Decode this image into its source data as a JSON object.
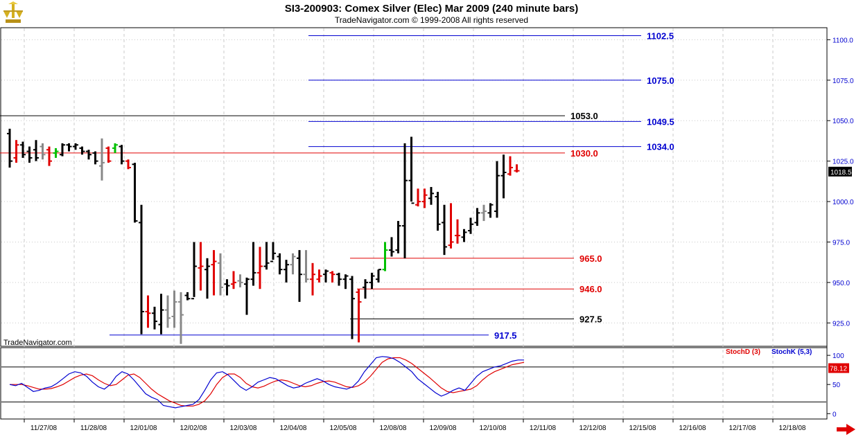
{
  "header": {
    "title": "SI3-200903:  Comex Silver (Elec) Mar 2009  (240 minute bars)",
    "subtitle": "TradeNavigator.com © 1999-2008 All rights reserved"
  },
  "watermark": "TradeNavigator.com",
  "legend": {
    "stoch_d": "StochD (3)",
    "stoch_k": "StochK (5,3)"
  },
  "colors": {
    "black": "#000000",
    "red": "#e00000",
    "gray": "#888888",
    "green": "#00c000",
    "blue": "#0000d0",
    "grid": "#c8c8c8"
  },
  "chart_data": {
    "type": "ohlc-bar",
    "price_axis": {
      "ylim": [
        911,
        1107
      ],
      "ticks": [
        1100.0,
        1075.0,
        1050.0,
        1025.0,
        1000.0,
        975.0,
        950.0,
        925.0
      ],
      "tick_labels": [
        "1100.0",
        "1075.0",
        "1050.0",
        "1025.0",
        "1000.0",
        "975.0",
        "950.0",
        "925.0"
      ],
      "current_price": "1018.5"
    },
    "x_axis": {
      "labels": [
        "11/27/08",
        "11/28/08",
        "12/01/08",
        "12/02/08",
        "12/03/08",
        "12/04/08",
        "12/05/08",
        "12/08/08",
        "12/09/08",
        "12/10/08",
        "12/11/08",
        "12/12/08",
        "12/15/08",
        "12/16/08",
        "12/17/08",
        "12/18/08"
      ]
    },
    "levels": [
      {
        "label": "1102.5",
        "value": 1102.5,
        "color": "blue",
        "x_start": 445
      },
      {
        "label": "1075.0",
        "value": 1075.0,
        "color": "blue",
        "x_start": 445
      },
      {
        "label": "1053.0",
        "value": 1053.0,
        "color": "black",
        "x_start": 0
      },
      {
        "label": "1049.5",
        "value": 1049.5,
        "color": "blue",
        "x_start": 445
      },
      {
        "label": "1034.0",
        "value": 1034.0,
        "color": "blue",
        "x_start": 445
      },
      {
        "label": "1030.0",
        "value": 1030.0,
        "color": "red",
        "x_start": 0
      },
      {
        "label": "965.0",
        "value": 965.0,
        "color": "red",
        "x_start": 505
      },
      {
        "label": "946.0",
        "value": 946.0,
        "color": "red",
        "x_start": 515
      },
      {
        "label": "927.5",
        "value": 927.5,
        "color": "black",
        "x_start": 505
      },
      {
        "label": "917.5",
        "value": 917.5,
        "color": "blue",
        "x_start": 158
      }
    ],
    "bars": [
      [
        1045,
        1021,
        1042,
        1025,
        "black"
      ],
      [
        1038,
        1024,
        1027,
        1035,
        "red"
      ],
      [
        1037,
        1027,
        1035,
        1029,
        "black"
      ],
      [
        1034,
        1024,
        1031,
        1027,
        "black"
      ],
      [
        1038,
        1025,
        1032,
        1027,
        "black"
      ],
      [
        1036,
        1026,
        1034,
        1029,
        "gray"
      ],
      [
        1034,
        1022,
        1032,
        1025,
        "red"
      ],
      [
        1033,
        1027,
        1030,
        1031,
        "green"
      ],
      [
        1036,
        1028,
        1029,
        1035,
        "black"
      ],
      [
        1036,
        1031,
        1035,
        1034,
        "black"
      ],
      [
        1036,
        1032,
        1034,
        1035,
        "black"
      ],
      [
        1034,
        1029,
        1033,
        1031,
        "black"
      ],
      [
        1032,
        1026,
        1031,
        1029,
        "black"
      ],
      [
        1031,
        1023,
        1030,
        1025,
        "black"
      ],
      [
        1039,
        1013,
        1022,
        1024,
        "gray"
      ],
      [
        1034,
        1024,
        1033,
        1025,
        "red"
      ],
      [
        1036,
        1030,
        1033,
        1035,
        "green"
      ],
      [
        1035,
        1023,
        1034,
        1025,
        "black"
      ],
      [
        1026,
        1020,
        1025,
        1021,
        "red"
      ],
      [
        1024,
        987,
        1023,
        988,
        "black"
      ],
      [
        998,
        918,
        987,
        932,
        "black"
      ],
      [
        942,
        922,
        932,
        931,
        "red"
      ],
      [
        935,
        921,
        931,
        926,
        "black"
      ],
      [
        943,
        918,
        924,
        933,
        "black"
      ],
      [
        942,
        922,
        933,
        928,
        "gray"
      ],
      [
        945,
        922,
        929,
        938,
        "gray"
      ],
      [
        944,
        912,
        938,
        930,
        "gray"
      ],
      [
        944,
        939,
        942,
        940,
        "black"
      ],
      [
        975,
        941,
        940,
        960,
        "black"
      ],
      [
        975,
        945,
        959,
        960,
        "red"
      ],
      [
        965,
        940,
        958,
        960,
        "black"
      ],
      [
        970,
        942,
        961,
        963,
        "red"
      ],
      [
        968,
        942,
        962,
        947,
        "gray"
      ],
      [
        952,
        942,
        949,
        948,
        "black"
      ],
      [
        957,
        946,
        949,
        950,
        "red"
      ],
      [
        955,
        947,
        951,
        950,
        "gray"
      ],
      [
        953,
        930,
        949,
        952,
        "black"
      ],
      [
        975,
        948,
        952,
        956,
        "black"
      ],
      [
        972,
        946,
        956,
        960,
        "red"
      ],
      [
        975,
        958,
        960,
        962,
        "black"
      ],
      [
        975,
        964,
        963,
        968,
        "black"
      ],
      [
        968,
        955,
        966,
        958,
        "black"
      ],
      [
        964,
        950,
        958,
        961,
        "black"
      ],
      [
        968,
        955,
        961,
        966,
        "gray"
      ],
      [
        970,
        938,
        965,
        955,
        "black"
      ],
      [
        970,
        950,
        955,
        952,
        "gray"
      ],
      [
        962,
        942,
        952,
        955,
        "red"
      ],
      [
        958,
        950,
        952,
        954,
        "red"
      ],
      [
        958,
        950,
        955,
        957,
        "black"
      ],
      [
        957,
        950,
        956,
        955,
        "red"
      ],
      [
        956,
        948,
        955,
        952,
        "black"
      ],
      [
        955,
        946,
        952,
        954,
        "black"
      ],
      [
        954,
        915,
        952,
        940,
        "black"
      ],
      [
        946,
        913,
        944,
        938,
        "red"
      ],
      [
        952,
        940,
        947,
        950,
        "black"
      ],
      [
        956,
        946,
        950,
        954,
        "black"
      ],
      [
        958,
        950,
        952,
        958,
        "black"
      ],
      [
        975,
        957,
        958,
        970,
        "green"
      ],
      [
        978,
        966,
        970,
        969,
        "black"
      ],
      [
        988,
        968,
        970,
        985,
        "black"
      ],
      [
        1036,
        965,
        985,
        1013,
        "black"
      ],
      [
        1040,
        1000,
        1013,
        999,
        "black"
      ],
      [
        1008,
        997,
        998,
        1000,
        "red"
      ],
      [
        1008,
        996,
        1000,
        1004,
        "red"
      ],
      [
        1009,
        998,
        1002,
        1005,
        "black"
      ],
      [
        1006,
        982,
        1003,
        986,
        "black"
      ],
      [
        998,
        967,
        987,
        972,
        "black"
      ],
      [
        999,
        971,
        973,
        975,
        "red"
      ],
      [
        989,
        974,
        979,
        979,
        "red"
      ],
      [
        983,
        975,
        978,
        981,
        "black"
      ],
      [
        990,
        980,
        982,
        986,
        "black"
      ],
      [
        996,
        985,
        987,
        993,
        "black"
      ],
      [
        998,
        988,
        993,
        994,
        "gray"
      ],
      [
        999,
        990,
        993,
        998,
        "black"
      ],
      [
        1025,
        990,
        994,
        1016,
        "black"
      ],
      [
        1029,
        1002,
        1016,
        1018,
        "black"
      ],
      [
        1028,
        1016,
        1017,
        1021,
        "red"
      ],
      [
        1023,
        1018,
        1019,
        1019,
        "red"
      ]
    ],
    "stoch": {
      "ylim": [
        -8,
        112
      ],
      "ticks": [
        100,
        50,
        0
      ],
      "tick_labels": [
        "100",
        "50",
        "0"
      ],
      "levels": [
        80,
        20
      ],
      "current_value": "78.12",
      "stoch_k": [
        50,
        48,
        52,
        45,
        38,
        40,
        44,
        46,
        52,
        60,
        68,
        72,
        70,
        64,
        54,
        46,
        42,
        50,
        64,
        72,
        68,
        58,
        46,
        34,
        28,
        24,
        14,
        12,
        10,
        12,
        14,
        16,
        24,
        40,
        58,
        70,
        72,
        66,
        56,
        46,
        40,
        46,
        54,
        58,
        62,
        60,
        54,
        48,
        44,
        46,
        52,
        56,
        60,
        56,
        50,
        46,
        44,
        42,
        46,
        56,
        72,
        84,
        96,
        98,
        97,
        94,
        88,
        80,
        72,
        60,
        52,
        44,
        36,
        30,
        34,
        40,
        44,
        40,
        52,
        64,
        72,
        76,
        80,
        82,
        86,
        90,
        92,
        92
      ],
      "stoch_d": [
        50,
        50,
        50,
        48,
        45,
        42,
        42,
        43,
        46,
        50,
        56,
        62,
        66,
        68,
        65,
        58,
        52,
        48,
        50,
        58,
        66,
        68,
        62,
        52,
        42,
        34,
        28,
        22,
        18,
        14,
        13,
        13,
        16,
        22,
        34,
        50,
        62,
        68,
        68,
        62,
        52,
        46,
        44,
        47,
        52,
        56,
        58,
        56,
        52,
        48,
        46,
        48,
        52,
        55,
        56,
        54,
        50,
        46,
        45,
        48,
        54,
        64,
        76,
        88,
        94,
        96,
        96,
        92,
        86,
        78,
        70,
        62,
        53,
        44,
        38,
        36,
        38,
        40,
        42,
        48,
        58,
        66,
        72,
        76,
        80,
        84,
        86,
        88
      ]
    }
  }
}
